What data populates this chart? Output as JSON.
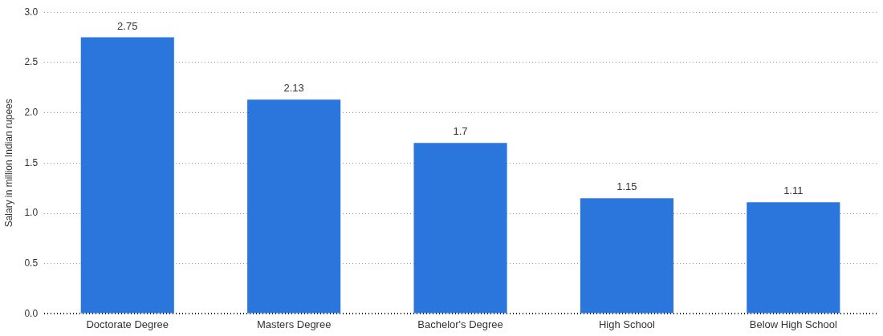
{
  "chart_data": {
    "type": "bar",
    "ylabel": "Salary in million Indian rupees",
    "categories": [
      "Doctorate Degree",
      "Masters Degree",
      "Bachelor's Degree",
      "High School",
      "Below High School"
    ],
    "values": [
      2.75,
      2.13,
      1.7,
      1.15,
      1.11
    ],
    "value_labels": [
      "2.75",
      "2.13",
      "1.7",
      "1.15",
      "1.11"
    ],
    "color": "#2a76dd",
    "ylim": [
      0,
      3
    ],
    "yticks": [
      "0.0",
      "0.5",
      "1.0",
      "1.5",
      "2.0",
      "2.5",
      "3.0"
    ],
    "grid": "y",
    "legend": false
  }
}
